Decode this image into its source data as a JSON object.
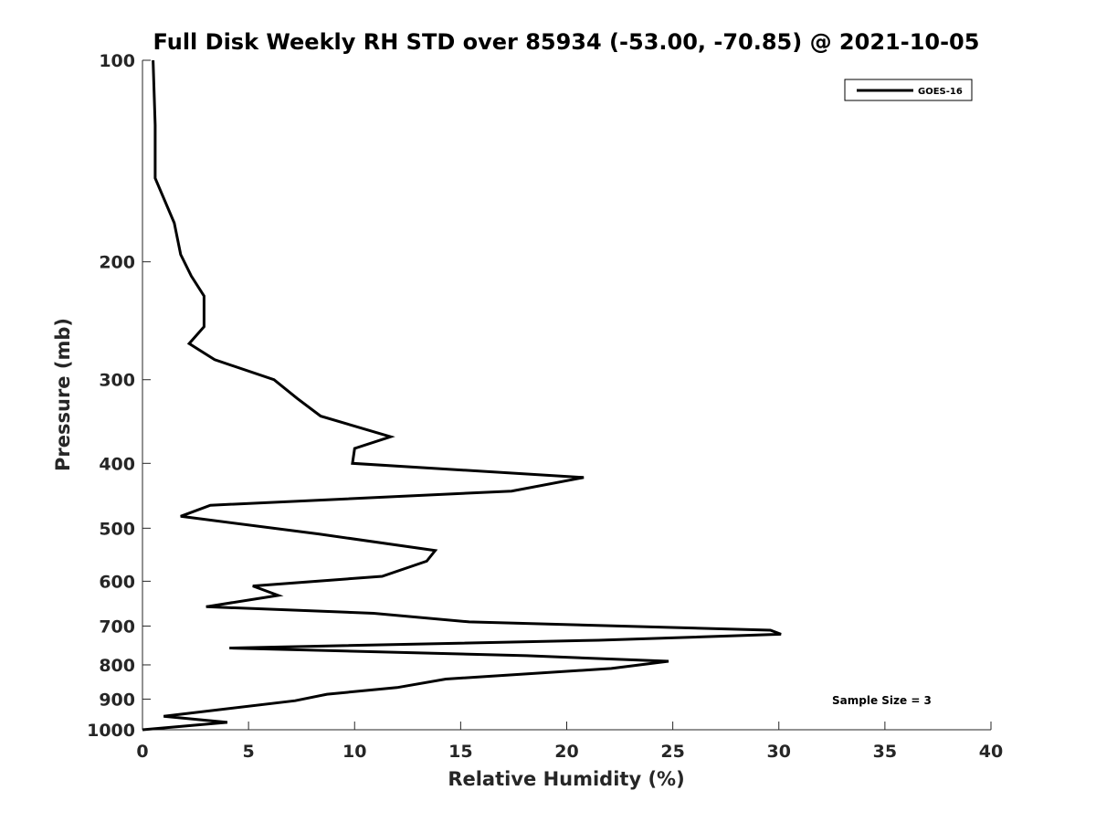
{
  "chart_data": {
    "type": "line",
    "title": "Full Disk Weekly RH STD over 85934 (-53.00, -70.85) @ 2021-10-05",
    "xlabel": "Relative Humidity (%)",
    "ylabel": "Pressure (mb)",
    "xlim": [
      0,
      40
    ],
    "ylim": [
      100,
      1000
    ],
    "y_scale": "log",
    "y_reversed": true,
    "x_ticks": [
      "0",
      "5",
      "10",
      "15",
      "20",
      "25",
      "30",
      "35",
      "40"
    ],
    "y_ticks": [
      "100",
      "200",
      "300",
      "400",
      "500",
      "600",
      "700",
      "800",
      "900",
      "1000"
    ],
    "grid": false,
    "legend_position": "top-right",
    "annotation": "Sample Size = 3",
    "series": [
      {
        "name": "GOES-16",
        "color": "#000000",
        "points": [
          [
            0.5,
            100
          ],
          [
            0.6,
            125
          ],
          [
            0.6,
            150
          ],
          [
            1.5,
            175
          ],
          [
            1.8,
            195
          ],
          [
            2.3,
            210
          ],
          [
            2.9,
            225
          ],
          [
            2.9,
            250
          ],
          [
            2.2,
            265
          ],
          [
            3.4,
            280
          ],
          [
            6.2,
            300
          ],
          [
            7.3,
            320
          ],
          [
            8.4,
            340
          ],
          [
            11.7,
            365
          ],
          [
            10.0,
            380
          ],
          [
            9.9,
            400
          ],
          [
            20.8,
            420
          ],
          [
            17.4,
            440
          ],
          [
            3.2,
            462
          ],
          [
            1.8,
            480
          ],
          [
            8.3,
            510
          ],
          [
            13.8,
            540
          ],
          [
            13.4,
            560
          ],
          [
            11.3,
            590
          ],
          [
            5.2,
            610
          ],
          [
            6.4,
            630
          ],
          [
            3.0,
            655
          ],
          [
            10.9,
            670
          ],
          [
            15.4,
            690
          ],
          [
            29.6,
            710
          ],
          [
            30.1,
            720
          ],
          [
            21.5,
            735
          ],
          [
            4.1,
            755
          ],
          [
            18.1,
            775
          ],
          [
            24.8,
            790
          ],
          [
            22.1,
            810
          ],
          [
            14.3,
            840
          ],
          [
            12.0,
            865
          ],
          [
            8.7,
            885
          ],
          [
            7.2,
            905
          ],
          [
            1.0,
            955
          ],
          [
            4.0,
            975
          ],
          [
            0.0,
            1000
          ]
        ]
      }
    ]
  }
}
